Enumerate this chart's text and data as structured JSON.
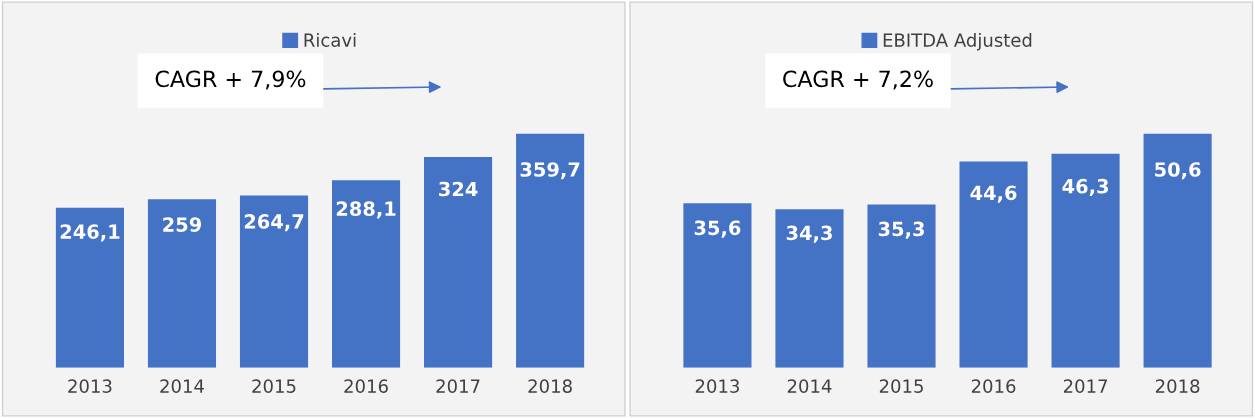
{
  "chart_data": [
    {
      "type": "bar",
      "categories": [
        "2013",
        "2014",
        "2015",
        "2016",
        "2017",
        "2018"
      ],
      "series": [
        {
          "name": "Ricavi",
          "color": "#4472c4",
          "values": [
            246.1,
            259,
            264.7,
            288.1,
            324,
            359.7
          ],
          "value_labels": [
            "246,1",
            "259",
            "264,7",
            "288,1",
            "324",
            "359,7"
          ]
        }
      ],
      "annotations": [
        "CAGR + 7,9%"
      ],
      "legend": "top",
      "grid": false
    },
    {
      "type": "bar",
      "categories": [
        "2013",
        "2014",
        "2015",
        "2016",
        "2017",
        "2018"
      ],
      "series": [
        {
          "name": "EBITDA Adjusted",
          "color": "#4472c4",
          "values": [
            35.6,
            34.3,
            35.3,
            44.6,
            46.3,
            50.6
          ],
          "value_labels": [
            "35,6",
            "34,3",
            "35,3",
            "44,6",
            "46,3",
            "50,6"
          ]
        }
      ],
      "annotations": [
        "CAGR + 7,2%"
      ],
      "legend": "top",
      "grid": false
    }
  ]
}
